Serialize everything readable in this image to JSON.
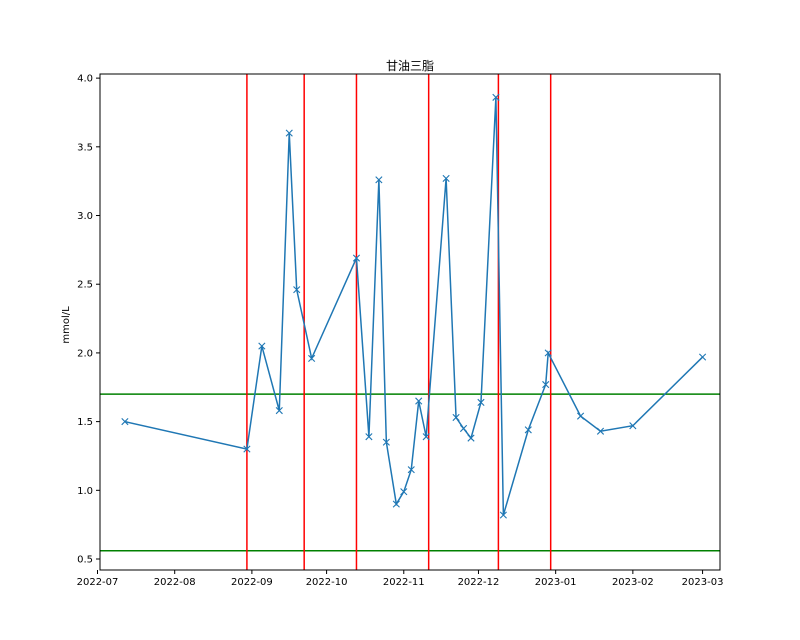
{
  "chart_data": {
    "type": "line",
    "title": "甘油三脂",
    "xlabel": "",
    "ylabel": "mmol/L",
    "xlim": [
      "2022-07-02",
      "2023-03-08"
    ],
    "ylim": [
      0.42,
      4.03
    ],
    "x_ticks": [
      "2022-07",
      "2022-08",
      "2022-09",
      "2022-10",
      "2022-11",
      "2022-12",
      "2023-01",
      "2023-02",
      "2023-03"
    ],
    "y_ticks": [
      "0.5",
      "1.0",
      "1.5",
      "2.0",
      "2.5",
      "3.0",
      "3.5",
      "4.0"
    ],
    "grid": false,
    "series": [
      {
        "color": "#1f77b4",
        "marker": "x",
        "points": [
          {
            "x": "2022-07-12",
            "y": 1.5
          },
          {
            "x": "2022-08-30",
            "y": 1.3
          },
          {
            "x": "2022-09-05",
            "y": 2.05
          },
          {
            "x": "2022-09-12",
            "y": 1.58
          },
          {
            "x": "2022-09-16",
            "y": 3.6
          },
          {
            "x": "2022-09-19",
            "y": 2.46
          },
          {
            "x": "2022-09-25",
            "y": 1.96
          },
          {
            "x": "2022-10-13",
            "y": 2.69
          },
          {
            "x": "2022-10-18",
            "y": 1.39
          },
          {
            "x": "2022-10-22",
            "y": 3.26
          },
          {
            "x": "2022-10-25",
            "y": 1.35
          },
          {
            "x": "2022-10-29",
            "y": 0.9
          },
          {
            "x": "2022-11-01",
            "y": 0.99
          },
          {
            "x": "2022-11-04",
            "y": 1.15
          },
          {
            "x": "2022-11-07",
            "y": 1.65
          },
          {
            "x": "2022-11-10",
            "y": 1.39
          },
          {
            "x": "2022-11-18",
            "y": 3.27
          },
          {
            "x": "2022-11-22",
            "y": 1.53
          },
          {
            "x": "2022-11-25",
            "y": 1.45
          },
          {
            "x": "2022-11-28",
            "y": 1.38
          },
          {
            "x": "2022-12-02",
            "y": 1.64
          },
          {
            "x": "2022-12-08",
            "y": 3.86
          },
          {
            "x": "2022-12-11",
            "y": 0.82
          },
          {
            "x": "2022-12-21",
            "y": 1.44
          },
          {
            "x": "2022-12-28",
            "y": 1.77
          },
          {
            "x": "2022-12-29",
            "y": 2.0
          },
          {
            "x": "2023-01-11",
            "y": 1.54
          },
          {
            "x": "2023-01-19",
            "y": 1.43
          },
          {
            "x": "2023-02-01",
            "y": 1.47
          },
          {
            "x": "2023-03-01",
            "y": 1.97
          }
        ]
      }
    ],
    "hlines": [
      {
        "y": 1.7,
        "color": "#008000"
      },
      {
        "y": 0.56,
        "color": "#008000"
      }
    ],
    "vlines": [
      {
        "x": "2022-08-30",
        "color": "#ff0000"
      },
      {
        "x": "2022-09-22",
        "color": "#ff0000"
      },
      {
        "x": "2022-10-13",
        "color": "#ff0000"
      },
      {
        "x": "2022-11-11",
        "color": "#ff0000"
      },
      {
        "x": "2022-12-09",
        "color": "#ff0000"
      },
      {
        "x": "2022-12-30",
        "color": "#ff0000"
      }
    ]
  }
}
